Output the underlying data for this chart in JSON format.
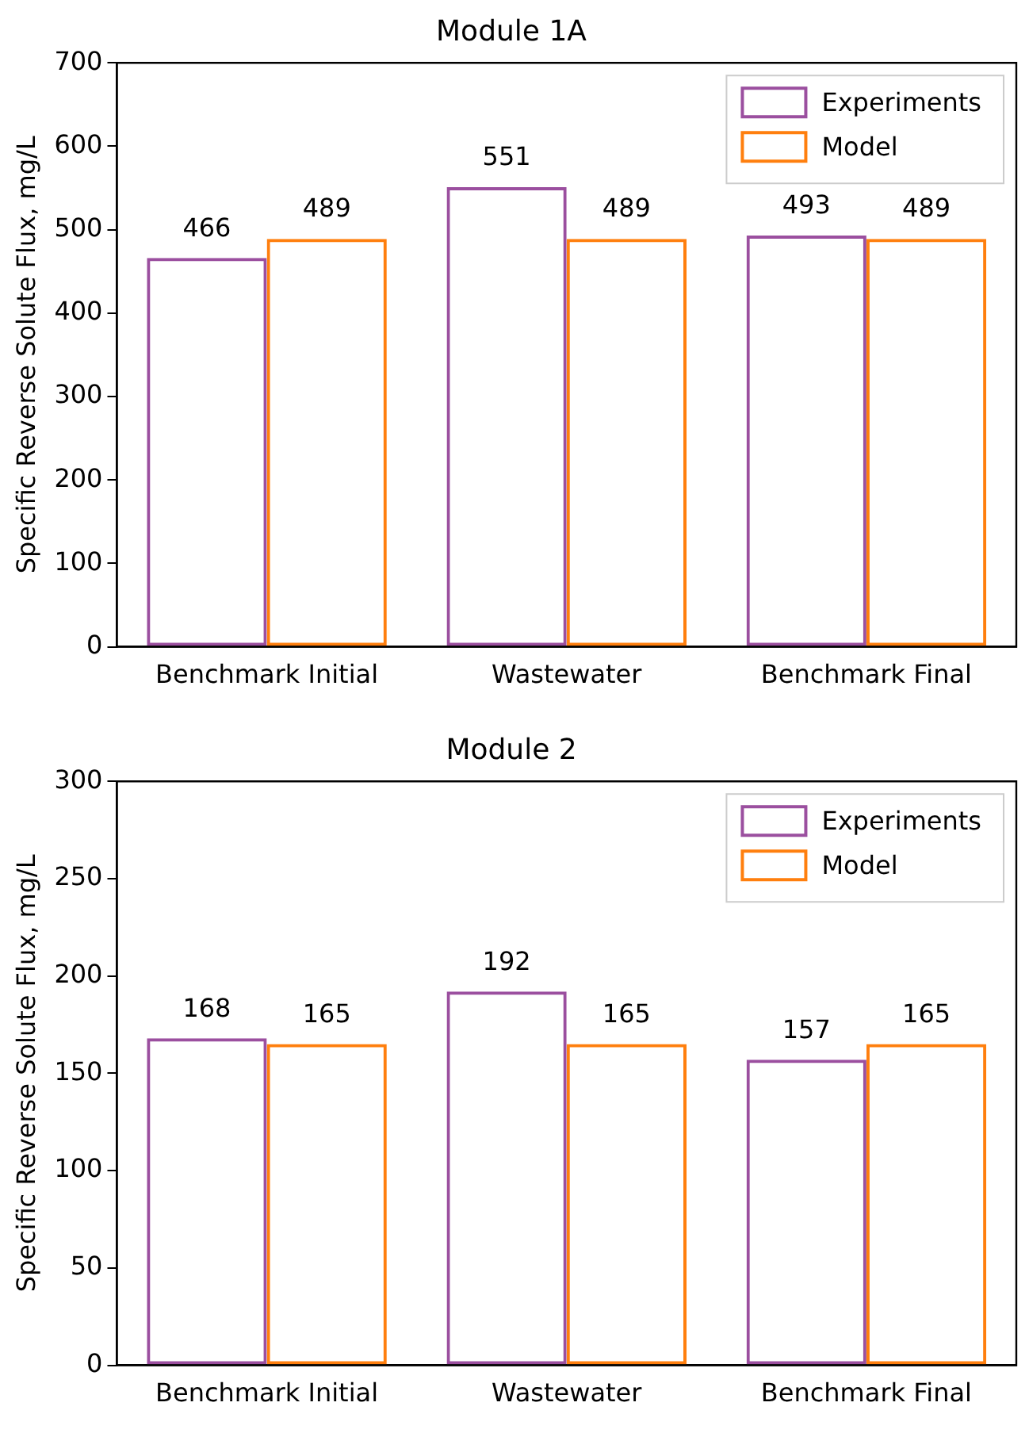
{
  "chart_data": [
    {
      "type": "bar",
      "title": "Module 1A",
      "ylabel": "Specific Reverse Solute Flux, mg/L",
      "categories": [
        "Benchmark Initial",
        "Wastewater",
        "Benchmark Final"
      ],
      "series": [
        {
          "name": "Experiments",
          "color": "#9b4f9f",
          "values": [
            466,
            551,
            493
          ]
        },
        {
          "name": "Model",
          "color": "#ff7f0e",
          "values": [
            489,
            489,
            489
          ]
        }
      ],
      "ylim": [
        0,
        700
      ],
      "yticks": [
        0,
        100,
        200,
        300,
        400,
        500,
        600,
        700
      ],
      "grid": false,
      "legend": "top right",
      "data_labels": true
    },
    {
      "type": "bar",
      "title": "Module 2",
      "ylabel": "Specific Reverse Solute Flux, mg/L",
      "categories": [
        "Benchmark Initial",
        "Wastewater",
        "Benchmark Final"
      ],
      "series": [
        {
          "name": "Experiments",
          "color": "#9b4f9f",
          "values": [
            168,
            192,
            157
          ]
        },
        {
          "name": "Model",
          "color": "#ff7f0e",
          "values": [
            165,
            165,
            165
          ]
        }
      ],
      "ylim": [
        0,
        300
      ],
      "yticks": [
        0,
        50,
        100,
        150,
        200,
        250,
        300
      ],
      "grid": false,
      "legend": "top right",
      "data_labels": true
    }
  ]
}
